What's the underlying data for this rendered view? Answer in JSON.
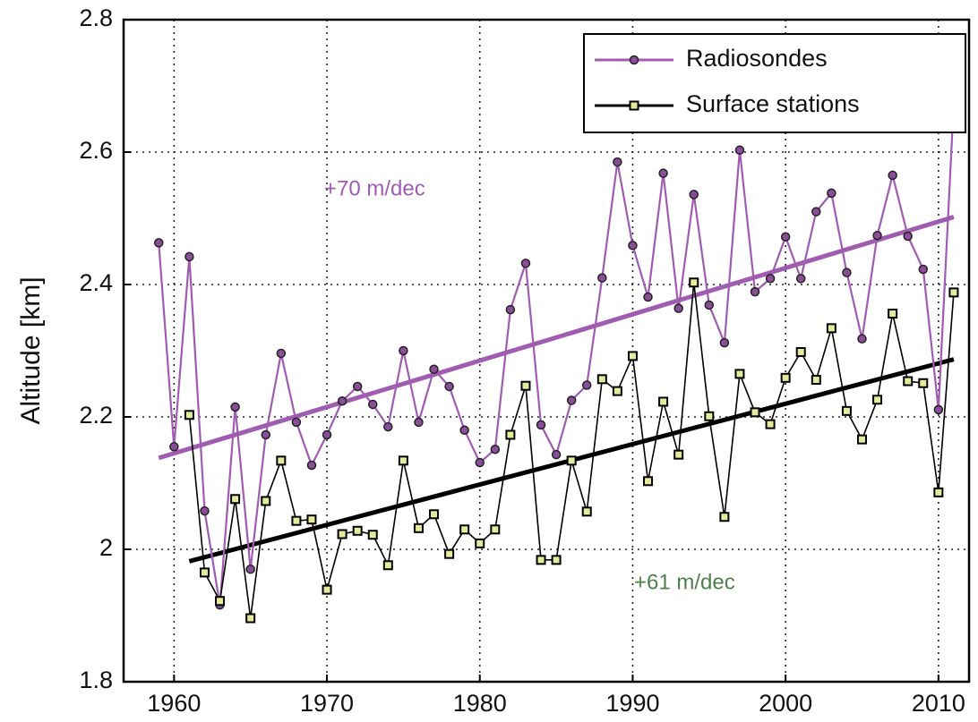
{
  "chart_data": {
    "type": "line",
    "ylabel": "Altitude [km]",
    "xlim": [
      1956.7,
      2012.0
    ],
    "xticks": [
      1960,
      1970,
      1980,
      1990,
      2000,
      2010
    ],
    "ylim": [
      1.8,
      2.8
    ],
    "yticks": [
      1.8,
      2,
      2.2,
      2.4,
      2.6,
      2.8
    ],
    "grid": true,
    "legend": "upper right",
    "series": [
      {
        "name": "Radiosondes",
        "color": "#a05cb0",
        "marker": "circle",
        "marker_fill": "#8a4e98",
        "x": [
          1959,
          1960,
          1961,
          1962,
          1963,
          1964,
          1965,
          1966,
          1967,
          1968,
          1969,
          1970,
          1971,
          1972,
          1973,
          1974,
          1975,
          1976,
          1977,
          1978,
          1979,
          1980,
          1981,
          1982,
          1983,
          1984,
          1985,
          1986,
          1987,
          1988,
          1989,
          1990,
          1991,
          1992,
          1993,
          1994,
          1995,
          1996,
          1997,
          1998,
          1999,
          2000,
          2001,
          2002,
          2003,
          2004,
          2005,
          2006,
          2007,
          2008,
          2009,
          2010,
          2011
        ],
        "values": [
          2.463,
          2.155,
          2.442,
          2.058,
          1.916,
          2.215,
          1.97,
          2.173,
          2.296,
          2.192,
          2.127,
          2.173,
          2.224,
          2.246,
          2.219,
          2.185,
          2.3,
          2.192,
          2.272,
          2.246,
          2.18,
          2.131,
          2.151,
          2.362,
          2.432,
          2.188,
          2.143,
          2.225,
          2.248,
          2.41,
          2.585,
          2.459,
          2.381,
          2.568,
          2.364,
          2.536,
          2.369,
          2.312,
          2.603,
          2.389,
          2.409,
          2.472,
          2.409,
          2.51,
          2.538,
          2.418,
          2.318,
          2.474,
          2.565,
          2.473,
          2.423,
          2.211,
          2.674
        ]
      },
      {
        "name": "Surface stations",
        "color": "#000000",
        "marker": "square",
        "marker_fill": "#e4ec9c",
        "x": [
          1961,
          1962,
          1963,
          1964,
          1965,
          1966,
          1967,
          1968,
          1969,
          1970,
          1971,
          1972,
          1973,
          1974,
          1975,
          1976,
          1977,
          1978,
          1979,
          1980,
          1981,
          1982,
          1983,
          1984,
          1985,
          1986,
          1987,
          1988,
          1989,
          1990,
          1991,
          1992,
          1993,
          1994,
          1995,
          1996,
          1997,
          1998,
          1999,
          2000,
          2001,
          2002,
          2003,
          2004,
          2005,
          2006,
          2007,
          2008,
          2009,
          2010,
          2011
        ],
        "values": [
          2.203,
          1.965,
          1.922,
          2.076,
          1.896,
          2.073,
          2.134,
          2.043,
          2.045,
          1.939,
          2.023,
          2.028,
          2.022,
          1.976,
          2.134,
          2.032,
          2.053,
          1.993,
          2.03,
          2.009,
          2.03,
          2.173,
          2.247,
          1.984,
          1.984,
          2.134,
          2.057,
          2.257,
          2.239,
          2.292,
          2.103,
          2.223,
          2.143,
          2.403,
          2.201,
          2.049,
          2.265,
          2.207,
          2.189,
          2.259,
          2.298,
          2.256,
          2.334,
          2.209,
          2.166,
          2.226,
          2.356,
          2.254,
          2.251,
          2.086,
          2.388
        ]
      }
    ],
    "trends": [
      {
        "color": "#a05cb0",
        "x": [
          1959,
          2011
        ],
        "values": [
          2.138,
          2.502
        ]
      },
      {
        "color": "#000000",
        "x": [
          1961,
          2011
        ],
        "values": [
          1.982,
          2.287
        ]
      }
    ],
    "annotations": [
      {
        "text": "+70 m/dec",
        "color": "#a05cb0"
      },
      {
        "text": "+61 m/dec",
        "color": "#4f7f4f"
      }
    ]
  }
}
